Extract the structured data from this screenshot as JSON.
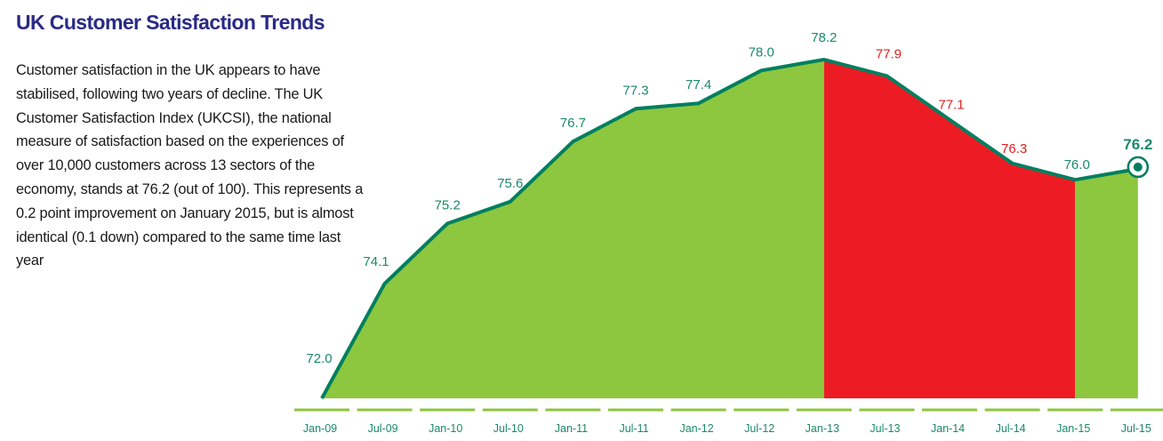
{
  "title": "UK Customer Satisfaction Trends",
  "description": "Customer satisfaction in the UK appears to have stabilised, following two years of decline. The UK Customer Satisfaction Index (UKCSI), the national measure of satisfaction based on the experiences of over 10,000 customers across 13 sectors of the economy, stands at 76.2 (out of 100). This represents a 0.2 point improvement on January 2015, but is almost identical (0.1 down) compared to the same time last year",
  "colors": {
    "green_fill": "#8dc63f",
    "red_fill": "#ed1c24",
    "line": "#007f5f",
    "label_green": "#1a8a6a",
    "label_red": "#e02020",
    "title": "#2a2a86"
  },
  "chart_data": {
    "type": "area",
    "title": "UK Customer Satisfaction Trends",
    "xlabel": "",
    "ylabel": "",
    "categories": [
      "Jan-09",
      "Jul-09",
      "Jan-10",
      "Jul-10",
      "Jan-11",
      "Jul-11",
      "Jan-12",
      "Jul-12",
      "Jan-13",
      "Jul-13",
      "Jan-14",
      "Jul-14",
      "Jan-15",
      "Jul-15"
    ],
    "series": [
      {
        "values": [
          72.0,
          74.1,
          75.2,
          75.6,
          76.7,
          77.3,
          77.4,
          78.0,
          78.2,
          77.9,
          77.1,
          76.3,
          76.0,
          76.2
        ]
      }
    ],
    "value_labels": [
      "72.0",
      "74.1",
      "75.2",
      "75.6",
      "76.7",
      "77.3",
      "77.4",
      "78.0",
      "78.2",
      "77.9",
      "77.1",
      "76.3",
      "76.0",
      "76.2"
    ],
    "decline_period": [
      "Jan-13",
      "Jan-15"
    ],
    "highlight_point": "Jul-15",
    "ylim": [
      72.0,
      78.2
    ],
    "grid": false,
    "legend": "none"
  }
}
